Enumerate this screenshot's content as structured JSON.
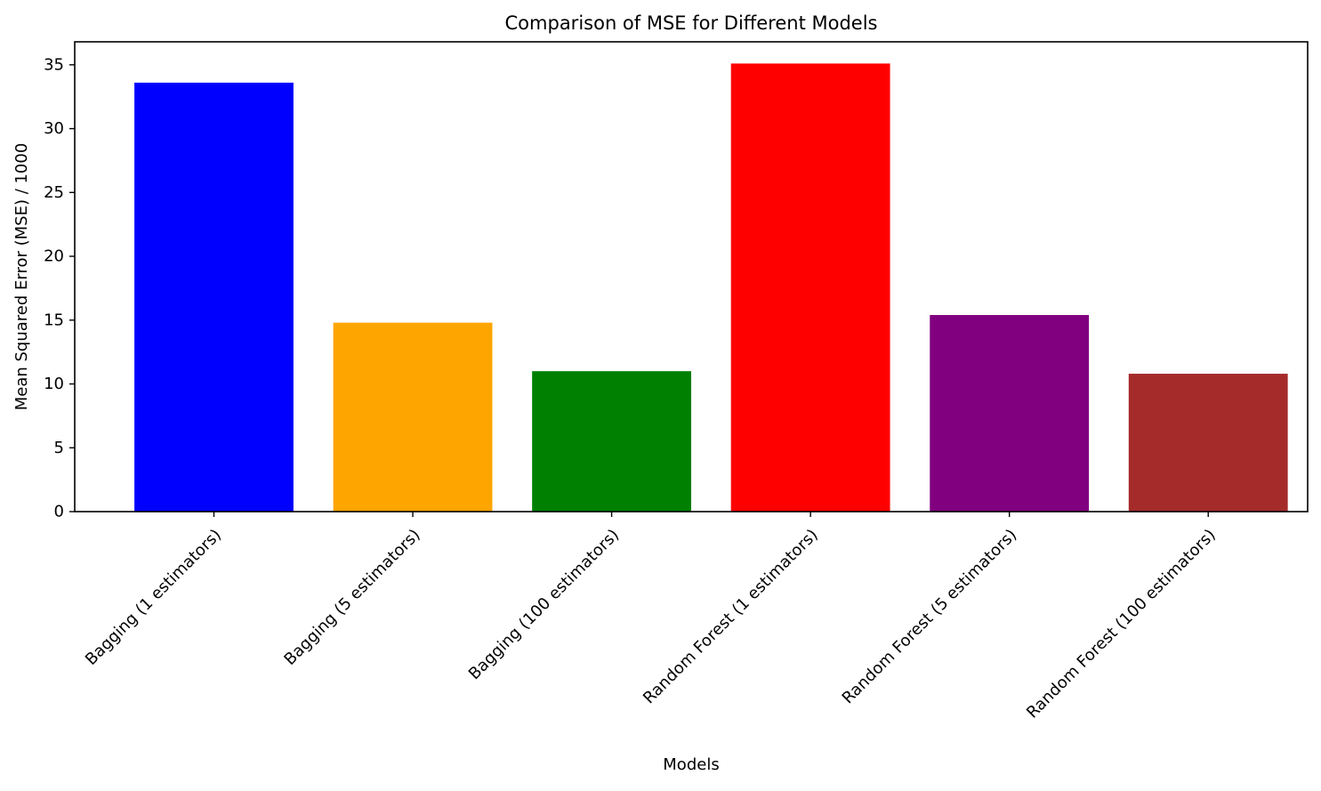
{
  "chart_data": {
    "type": "bar",
    "title": "Comparison of MSE for Different Models",
    "xlabel": "Models",
    "ylabel": "Mean Squared Error (MSE) / 1000",
    "categories": [
      "Bagging (1 estimators)",
      "Bagging (5 estimators)",
      "Bagging (100 estimators)",
      "Random Forest (1 estimators)",
      "Random Forest (5 estimators)",
      "Random Forest (100 estimators)"
    ],
    "values": [
      33.6,
      14.8,
      11.0,
      35.1,
      15.4,
      10.8
    ],
    "colors": [
      "#0000ff",
      "#ffa500",
      "#008000",
      "#ff0000",
      "#800080",
      "#a52a2a"
    ],
    "ylim": [
      0,
      36.8
    ],
    "yticks": [
      0,
      5,
      10,
      15,
      20,
      25,
      30,
      35
    ],
    "grid": false,
    "legend": "none"
  }
}
